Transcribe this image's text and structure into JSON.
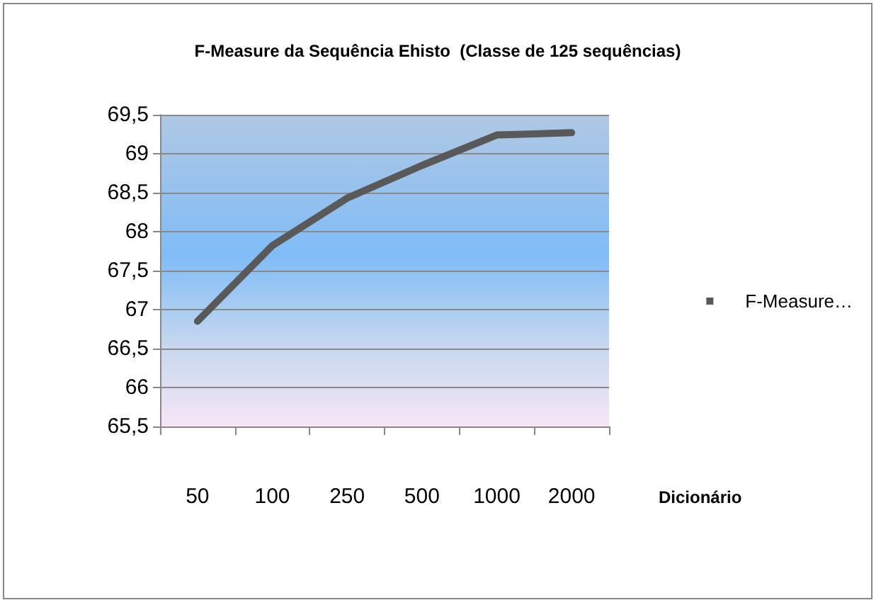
{
  "chart_data": {
    "type": "line",
    "title": "F-Measure da Sequência Ehisto  (Classe de 125 sequências)",
    "xlabel": "Dicionário",
    "categories": [
      "50",
      "100",
      "250",
      "500",
      "1000",
      "2000"
    ],
    "series": [
      {
        "name": "F-Measure…",
        "color": "#595959",
        "values": [
          66.85,
          67.82,
          68.43,
          68.85,
          69.24,
          69.27
        ]
      }
    ],
    "ylim": [
      65.5,
      69.5
    ],
    "yticks": [
      {
        "value": 65.5,
        "label": "65,5"
      },
      {
        "value": 66,
        "label": "66"
      },
      {
        "value": 66.5,
        "label": "66,5"
      },
      {
        "value": 67,
        "label": "67"
      },
      {
        "value": 67.5,
        "label": "67,5"
      },
      {
        "value": 68,
        "label": "68"
      },
      {
        "value": 68.5,
        "label": "68,5"
      },
      {
        "value": 69,
        "label": "69"
      },
      {
        "value": 69.5,
        "label": "69,5"
      }
    ],
    "grid": "y",
    "legend": "right",
    "marker": "none",
    "line_style": "solid"
  }
}
